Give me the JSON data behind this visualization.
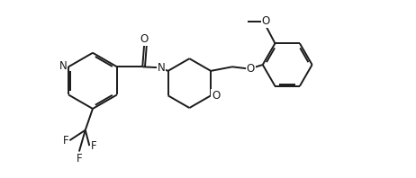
{
  "bg_color": "#ffffff",
  "line_color": "#1a1a1a",
  "line_width": 1.4,
  "font_size": 8.5,
  "figsize": [
    4.62,
    1.98
  ],
  "dpi": 100,
  "xlim": [
    0,
    10
  ],
  "ylim": [
    0,
    4.3
  ]
}
